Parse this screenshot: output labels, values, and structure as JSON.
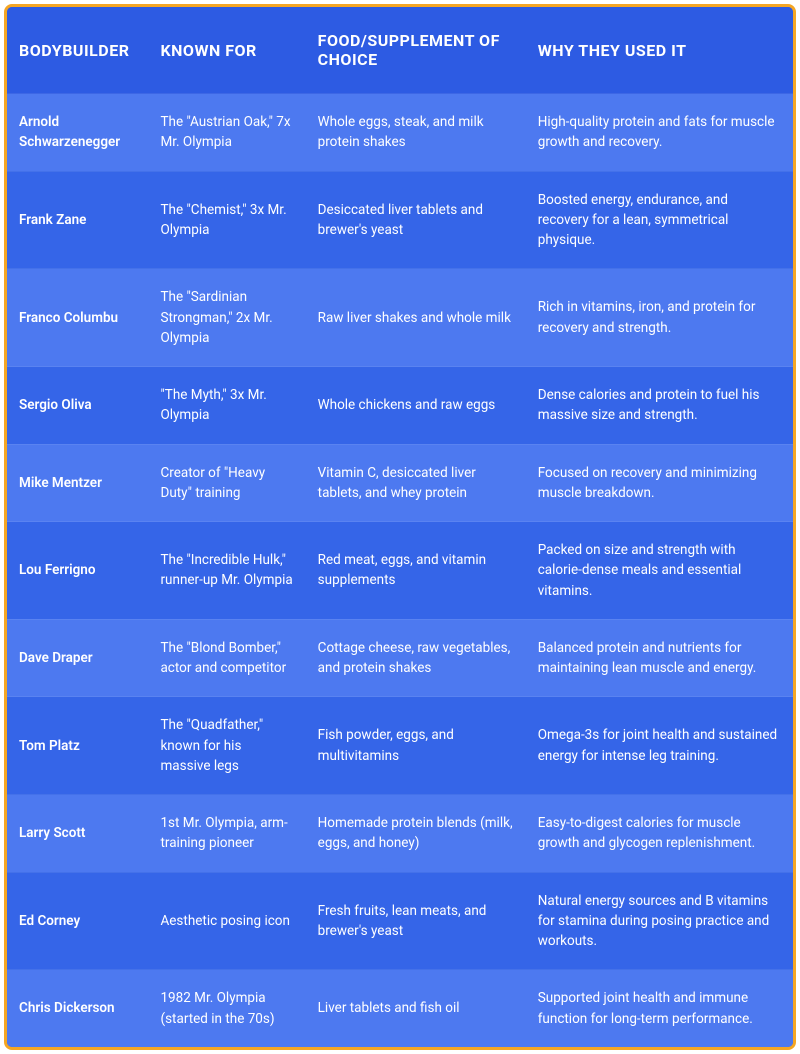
{
  "table": {
    "border_color": "#f5a623",
    "header_bg": "#2d5be3",
    "row_odd_bg": "#4d79f0",
    "row_even_bg": "#3565e8",
    "text_color": "#ffffff",
    "columns": [
      "BODYBUILDER",
      "KNOWN FOR",
      "FOOD/SUPPLEMENT OF CHOICE",
      "WHY THEY USED IT"
    ],
    "rows": [
      {
        "name": "Arnold Schwarzenegger",
        "known_for": "The \"Austrian Oak,\" 7x Mr. Olympia",
        "food": "Whole eggs, steak, and milk protein shakes",
        "why": "High-quality protein and fats for muscle growth and recovery."
      },
      {
        "name": "Frank Zane",
        "known_for": "The \"Chemist,\" 3x Mr. Olympia",
        "food": "Desiccated liver tablets and brewer's yeast",
        "why": "Boosted energy, endurance, and recovery for a lean, symmetrical physique."
      },
      {
        "name": "Franco Columbu",
        "known_for": "The \"Sardinian Strongman,\" 2x Mr. Olympia",
        "food": "Raw liver shakes and whole milk",
        "why": "Rich in vitamins, iron, and protein for recovery and strength."
      },
      {
        "name": "Sergio Oliva",
        "known_for": "\"The Myth,\" 3x Mr. Olympia",
        "food": "Whole chickens and raw eggs",
        "why": "Dense calories and protein to fuel his massive size and strength."
      },
      {
        "name": "Mike Mentzer",
        "known_for": "Creator of \"Heavy Duty\" training",
        "food": "Vitamin C, desiccated liver tablets, and whey protein",
        "why": "Focused on recovery and minimizing muscle breakdown."
      },
      {
        "name": "Lou Ferrigno",
        "known_for": "The \"Incredible Hulk,\" runner-up Mr. Olympia",
        "food": "Red meat, eggs, and vitamin supplements",
        "why": "Packed on size and strength with calorie-dense meals and essential vitamins."
      },
      {
        "name": "Dave Draper",
        "known_for": "The \"Blond Bomber,\" actor and competitor",
        "food": "Cottage cheese, raw vegetables, and protein shakes",
        "why": "Balanced protein and nutrients for maintaining lean muscle and energy."
      },
      {
        "name": "Tom Platz",
        "known_for": "The \"Quadfather,\" known for his massive legs",
        "food": "Fish powder, eggs, and multivitamins",
        "why": "Omega-3s for joint health and sustained energy for intense leg training."
      },
      {
        "name": "Larry Scott",
        "known_for": "1st Mr. Olympia, arm-training pioneer",
        "food": "Homemade protein blends (milk, eggs, and honey)",
        "why": "Easy-to-digest calories for muscle growth and glycogen replenishment."
      },
      {
        "name": "Ed Corney",
        "known_for": "Aesthetic posing icon",
        "food": "Fresh fruits, lean meats, and brewer's yeast",
        "why": "Natural energy sources and B vitamins for stamina during posing practice and workouts."
      },
      {
        "name": "Chris Dickerson",
        "known_for": "1982 Mr. Olympia (started in the 70s)",
        "food": "Liver tablets and fish oil",
        "why": "Supported joint health and immune function for long-term performance."
      }
    ]
  }
}
